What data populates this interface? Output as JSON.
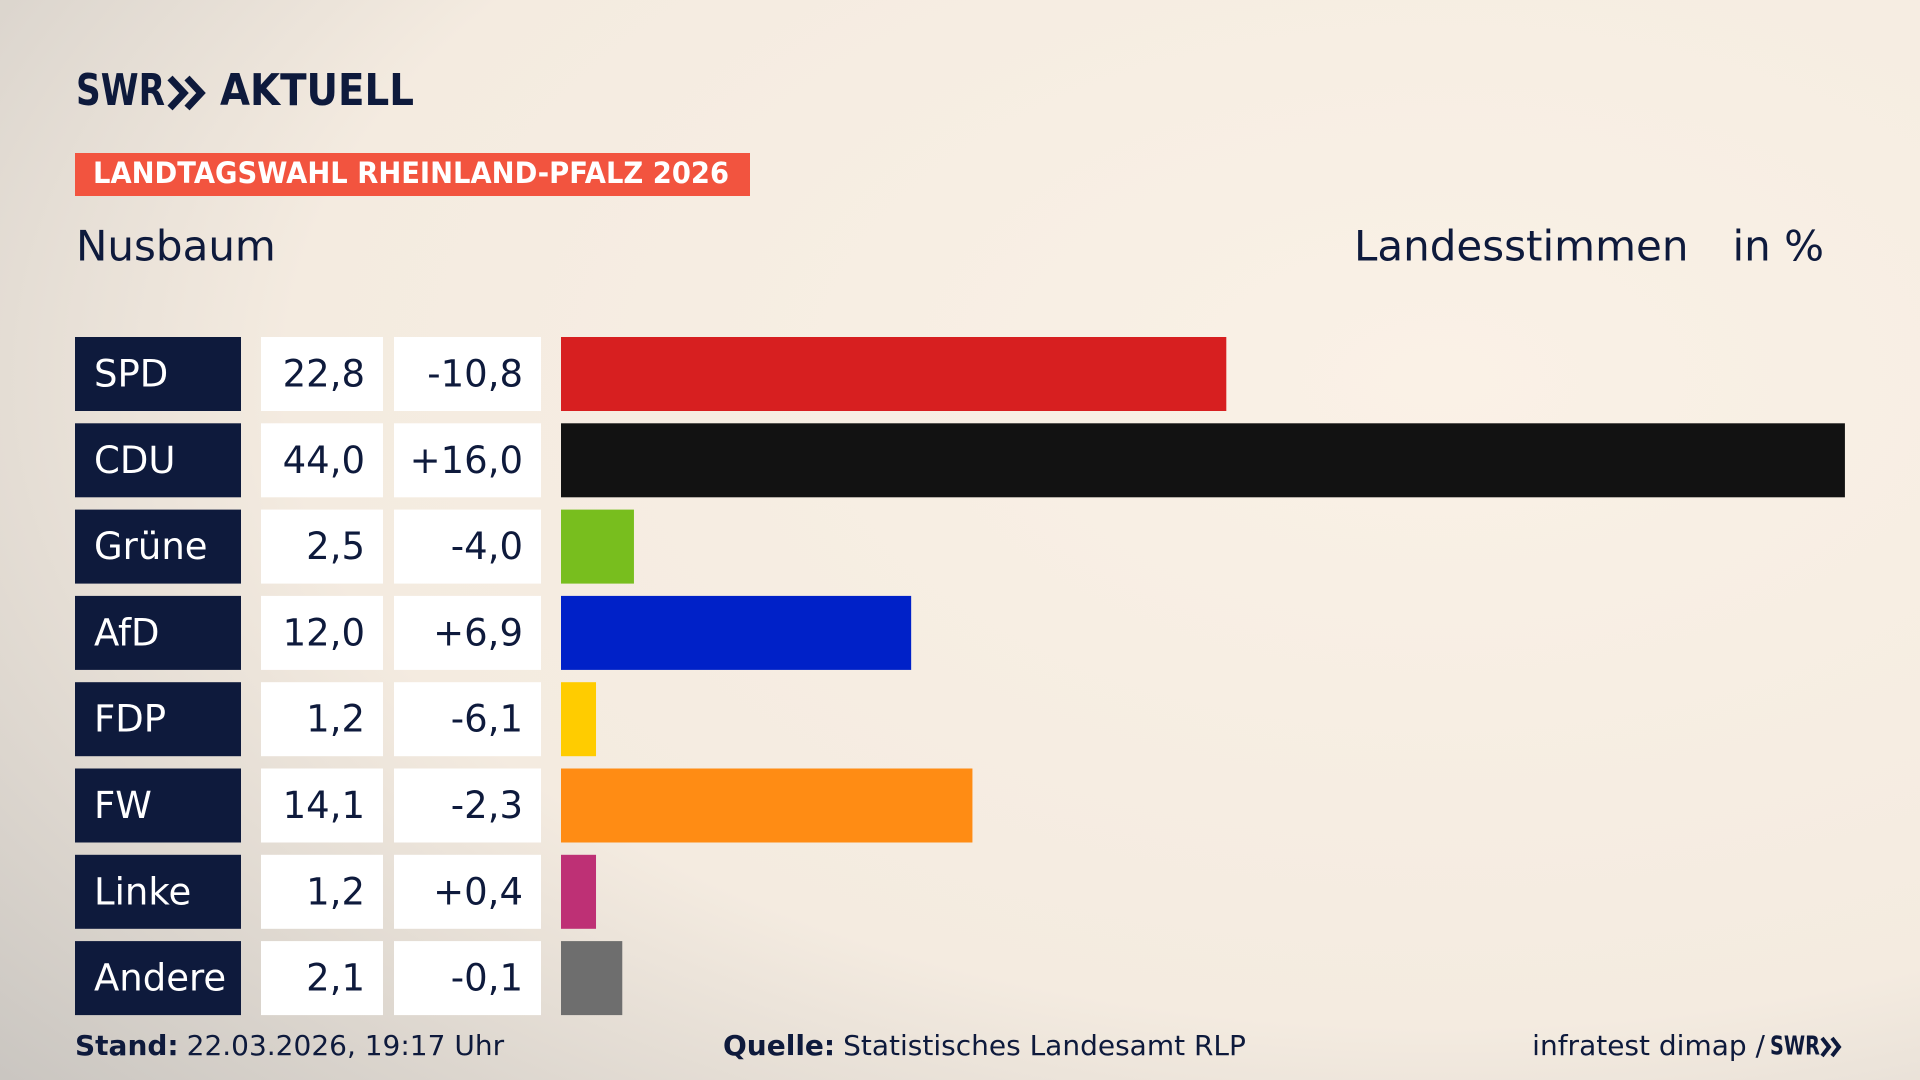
{
  "header": {
    "brand": "SWR",
    "product": "AKTUELL",
    "badge": "LANDTAGSWAHL RHEINLAND-PFALZ 2026",
    "place": "Nusbaum",
    "measure": "Landesstimmen",
    "unit": "in %"
  },
  "chart_data": {
    "type": "bar",
    "categories": [
      "SPD",
      "CDU",
      "Grüne",
      "AfD",
      "FDP",
      "FW",
      "Linke",
      "Andere"
    ],
    "values": [
      22.8,
      44.0,
      2.5,
      12.0,
      1.2,
      14.1,
      1.2,
      2.1
    ],
    "value_labels": [
      "22,8",
      "44,0",
      "2,5",
      "12,0",
      "1,2",
      "14,1",
      "1,2",
      "2,1"
    ],
    "change_labels": [
      "-10,8",
      "+16,0",
      "-4,0",
      "+6,9",
      "-6,1",
      "-2,3",
      "+0,4",
      "-0,1"
    ],
    "colors": [
      "#d71f20",
      "#121212",
      "#78be1e",
      "#0021c8",
      "#ffcc00",
      "#ff8c14",
      "#be3075",
      "#6e6e6e"
    ]
  },
  "footer": {
    "stand_label": "Stand:",
    "stand": "22.03.2026, 19:17 Uhr",
    "source_label": "Quelle:",
    "source": "Statistisches Landesamt RLP",
    "credit": "infratest dimap /",
    "credit_brand": "SWR"
  }
}
